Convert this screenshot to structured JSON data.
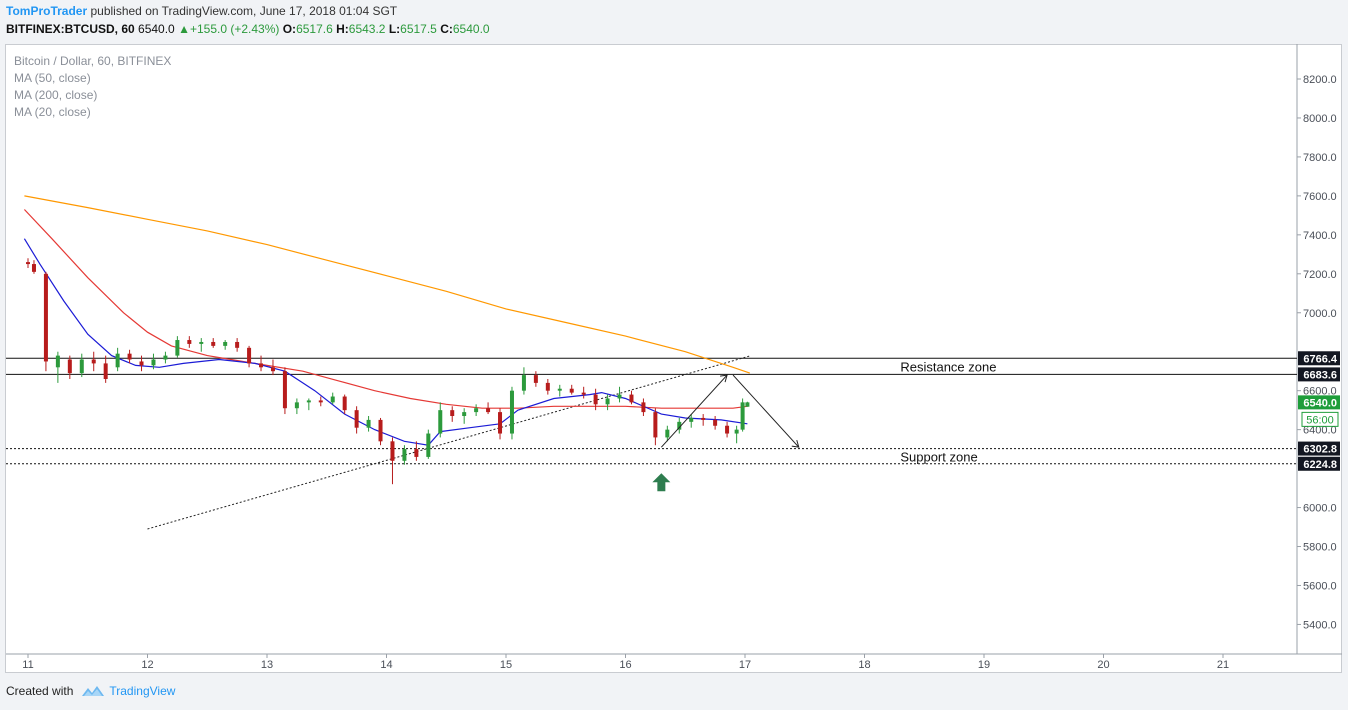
{
  "header": {
    "author": "TomProTrader",
    "published_text": "published on TradingView.com, June 17, 2018 01:04 SGT",
    "symbol": "BITFINEX:BTCUSD, 60",
    "last": "6540.0",
    "change": "+155.0 (+2.43%)",
    "open_label": "O:",
    "open": "6517.6",
    "high_label": "H:",
    "high": "6543.2",
    "low_label": "L:",
    "low": "6517.5",
    "close_label": "C:",
    "close": "6540.0"
  },
  "legend": {
    "title": "Bitcoin / Dollar, 60, BITFINEX",
    "ma50": "MA (50, close)",
    "ma200": "MA (200, close)",
    "ma20": "MA (20, close)"
  },
  "footer": {
    "created_with": "Created with",
    "brand": "TradingView"
  },
  "colors": {
    "up": "#2c9a3c",
    "down": "#b71c1c",
    "ma20": "#1c1cd6",
    "ma50": "#e53935",
    "ma200": "#ff9800",
    "price_tag": "#1e9d3a",
    "label_tag": "#131722",
    "arrow_marker": "#2e7d4f"
  },
  "chart_data": {
    "type": "candlestick",
    "symbol": "BTCUSD",
    "timeframe": "60",
    "y_ticks": [
      "8200.0",
      "8000.0",
      "7800.0",
      "7600.0",
      "7400.0",
      "7200.0",
      "7000.0",
      "6600.0",
      "6400.0",
      "6000.0",
      "5800.0",
      "5600.0",
      "5400.0"
    ],
    "x_ticks": [
      "11",
      "12",
      "13",
      "14",
      "15",
      "16",
      "17",
      "18",
      "19",
      "20",
      "21"
    ],
    "ylim": [
      5270,
      8350
    ],
    "xlim": [
      10.96,
      21.65
    ],
    "series": [
      {
        "name": "MA (50, close)",
        "color": "#e53935",
        "points": [
          [
            10.97,
            7530
          ],
          [
            11.2,
            7380
          ],
          [
            11.5,
            7180
          ],
          [
            11.8,
            7000
          ],
          [
            12.0,
            6900
          ],
          [
            12.2,
            6830
          ],
          [
            12.5,
            6780
          ],
          [
            12.8,
            6750
          ],
          [
            13.0,
            6730
          ],
          [
            13.3,
            6700
          ],
          [
            13.6,
            6650
          ],
          [
            13.9,
            6600
          ],
          [
            14.2,
            6560
          ],
          [
            14.5,
            6530
          ],
          [
            14.8,
            6510
          ],
          [
            15.1,
            6510
          ],
          [
            15.4,
            6520
          ],
          [
            15.7,
            6520
          ],
          [
            16.0,
            6520
          ],
          [
            16.3,
            6510
          ],
          [
            16.6,
            6510
          ],
          [
            16.9,
            6510
          ],
          [
            17.02,
            6520
          ]
        ]
      },
      {
        "name": "MA (200, close)",
        "color": "#ff9800",
        "points": [
          [
            10.97,
            7600
          ],
          [
            11.5,
            7540
          ],
          [
            12.0,
            7480
          ],
          [
            12.5,
            7420
          ],
          [
            13.0,
            7350
          ],
          [
            13.5,
            7270
          ],
          [
            14.0,
            7190
          ],
          [
            14.5,
            7110
          ],
          [
            15.0,
            7020
          ],
          [
            15.5,
            6950
          ],
          [
            16.0,
            6880
          ],
          [
            16.5,
            6800
          ],
          [
            16.9,
            6720
          ],
          [
            17.04,
            6690
          ]
        ]
      },
      {
        "name": "MA (20, close)",
        "color": "#1c1cd6",
        "points": [
          [
            10.97,
            7380
          ],
          [
            11.1,
            7250
          ],
          [
            11.3,
            7060
          ],
          [
            11.5,
            6890
          ],
          [
            11.7,
            6780
          ],
          [
            11.9,
            6730
          ],
          [
            12.1,
            6720
          ],
          [
            12.3,
            6740
          ],
          [
            12.6,
            6760
          ],
          [
            12.9,
            6740
          ],
          [
            13.15,
            6700
          ],
          [
            13.4,
            6600
          ],
          [
            13.65,
            6480
          ],
          [
            13.9,
            6400
          ],
          [
            14.15,
            6340
          ],
          [
            14.35,
            6320
          ],
          [
            14.45,
            6390
          ],
          [
            14.7,
            6410
          ],
          [
            14.95,
            6430
          ],
          [
            15.1,
            6500
          ],
          [
            15.4,
            6560
          ],
          [
            15.7,
            6580
          ],
          [
            15.8,
            6590
          ],
          [
            16.0,
            6560
          ],
          [
            16.3,
            6480
          ],
          [
            16.5,
            6460
          ],
          [
            16.8,
            6450
          ],
          [
            17.02,
            6430
          ]
        ]
      },
      {
        "name": "Bitcoin / Dollar, 60, BITFINEX",
        "candles": [
          [
            11.0,
            7260,
            7280,
            7230,
            7250
          ],
          [
            11.05,
            7250,
            7270,
            7200,
            7210
          ],
          [
            11.15,
            7200,
            7210,
            6700,
            6750
          ],
          [
            11.25,
            6720,
            6800,
            6640,
            6780
          ],
          [
            11.35,
            6760,
            6780,
            6660,
            6690
          ],
          [
            11.45,
            6690,
            6790,
            6670,
            6760
          ],
          [
            11.55,
            6760,
            6800,
            6700,
            6740
          ],
          [
            11.65,
            6740,
            6780,
            6640,
            6660
          ],
          [
            11.75,
            6720,
            6820,
            6700,
            6790
          ],
          [
            11.85,
            6790,
            6810,
            6740,
            6760
          ],
          [
            11.95,
            6750,
            6780,
            6700,
            6730
          ],
          [
            12.05,
            6730,
            6790,
            6710,
            6760
          ],
          [
            12.15,
            6760,
            6800,
            6740,
            6780
          ],
          [
            12.25,
            6780,
            6880,
            6770,
            6860
          ],
          [
            12.35,
            6860,
            6880,
            6820,
            6840
          ],
          [
            12.45,
            6840,
            6870,
            6800,
            6850
          ],
          [
            12.55,
            6850,
            6870,
            6820,
            6830
          ],
          [
            12.65,
            6830,
            6860,
            6810,
            6850
          ],
          [
            12.75,
            6850,
            6870,
            6800,
            6820
          ],
          [
            12.85,
            6820,
            6830,
            6720,
            6740
          ],
          [
            12.95,
            6740,
            6780,
            6700,
            6720
          ],
          [
            13.05,
            6720,
            6760,
            6680,
            6700
          ],
          [
            13.15,
            6700,
            6720,
            6480,
            6510
          ],
          [
            13.25,
            6510,
            6560,
            6480,
            6540
          ],
          [
            13.35,
            6540,
            6560,
            6500,
            6550
          ],
          [
            13.45,
            6550,
            6570,
            6520,
            6540
          ],
          [
            13.55,
            6540,
            6590,
            6530,
            6570
          ],
          [
            13.65,
            6570,
            6580,
            6480,
            6500
          ],
          [
            13.75,
            6500,
            6520,
            6380,
            6410
          ],
          [
            13.85,
            6410,
            6470,
            6390,
            6450
          ],
          [
            13.95,
            6450,
            6460,
            6320,
            6340
          ],
          [
            14.05,
            6340,
            6360,
            6120,
            6240
          ],
          [
            14.15,
            6240,
            6320,
            6220,
            6300
          ],
          [
            14.25,
            6300,
            6340,
            6240,
            6260
          ],
          [
            14.35,
            6260,
            6400,
            6250,
            6380
          ],
          [
            14.45,
            6380,
            6540,
            6360,
            6500
          ],
          [
            14.55,
            6500,
            6520,
            6440,
            6470
          ],
          [
            14.65,
            6470,
            6510,
            6430,
            6490
          ],
          [
            14.75,
            6490,
            6530,
            6470,
            6510
          ],
          [
            14.85,
            6510,
            6540,
            6480,
            6490
          ],
          [
            14.95,
            6490,
            6510,
            6350,
            6380
          ],
          [
            15.05,
            6380,
            6620,
            6350,
            6600
          ],
          [
            15.15,
            6600,
            6720,
            6580,
            6680
          ],
          [
            15.25,
            6680,
            6700,
            6620,
            6640
          ],
          [
            15.35,
            6640,
            6660,
            6580,
            6600
          ],
          [
            15.45,
            6600,
            6630,
            6570,
            6610
          ],
          [
            15.55,
            6610,
            6630,
            6580,
            6590
          ],
          [
            15.65,
            6590,
            6620,
            6560,
            6580
          ],
          [
            15.75,
            6580,
            6610,
            6500,
            6530
          ],
          [
            15.85,
            6530,
            6580,
            6500,
            6560
          ],
          [
            15.95,
            6560,
            6620,
            6540,
            6580
          ],
          [
            16.05,
            6580,
            6600,
            6530,
            6540
          ],
          [
            16.15,
            6540,
            6560,
            6470,
            6490
          ],
          [
            16.25,
            6490,
            6510,
            6320,
            6360
          ],
          [
            16.35,
            6360,
            6420,
            6340,
            6400
          ],
          [
            16.45,
            6400,
            6460,
            6380,
            6440
          ],
          [
            16.55,
            6440,
            6480,
            6410,
            6460
          ],
          [
            16.65,
            6460,
            6480,
            6420,
            6450
          ],
          [
            16.75,
            6450,
            6470,
            6400,
            6420
          ],
          [
            16.85,
            6420,
            6440,
            6360,
            6380
          ],
          [
            16.93,
            6380,
            6420,
            6330,
            6400
          ],
          [
            16.98,
            6400,
            6560,
            6390,
            6540
          ],
          [
            17.02,
            6517.6,
            6543.2,
            6517.5,
            6540
          ]
        ]
      }
    ],
    "levels": [
      {
        "label": "6766.4",
        "value": 6766.4,
        "style": "solid"
      },
      {
        "label": "6683.6",
        "value": 6683.6,
        "style": "solid"
      },
      {
        "label": "6302.8",
        "value": 6302.8,
        "style": "dotted"
      },
      {
        "label": "6224.8",
        "value": 6224.8,
        "style": "dotted"
      }
    ],
    "current_price": {
      "label": "6540.0",
      "value": 6540.0
    },
    "countdown_label": "56:00",
    "annotations": [
      {
        "text": "Resistance zone",
        "x": 18.3,
        "y": 6725
      },
      {
        "text": "Support zone",
        "x": 18.3,
        "y": 6262
      }
    ],
    "trendline": {
      "from": [
        12.0,
        5890
      ],
      "to": [
        17.05,
        6780
      ]
    },
    "projection": [
      [
        16.3,
        6310
      ],
      [
        16.85,
        6680
      ],
      [
        16.9,
        6680
      ],
      [
        17.45,
        6310
      ]
    ],
    "signal_arrow": {
      "x": 16.3,
      "y": 6130,
      "direction": "up"
    },
    "grid": false
  }
}
